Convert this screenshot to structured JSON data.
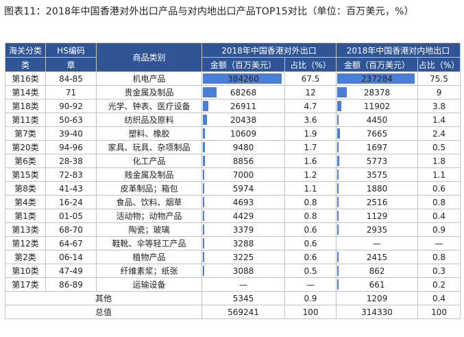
{
  "title": "图表11：2018年中国香港对外出口产品与对内地出口产品TOP15对比（单位：百万美元，%）",
  "headers": {
    "customs_class": "海关分类",
    "customs_class_2": "类",
    "hs_code": "HS编码",
    "hs_code_2": "章",
    "category": "商品类别",
    "group_external": "2018年中国香港对外出口",
    "group_mainland": "2018年中国香港对内地出口",
    "amount": "金额（百万美元）",
    "share": "占比（%）"
  },
  "max_external": 384260,
  "max_mainland": 237284,
  "rows": [
    {
      "cls": "第16类",
      "hs": "84-85",
      "cat": "机电产品",
      "ext": "384260",
      "ext_v": 384260,
      "ext_s": "67.5",
      "ml": "237284",
      "ml_v": 237284,
      "ml_s": "75.5"
    },
    {
      "cls": "第14类",
      "hs": "71",
      "cat": "贵金属及制品",
      "ext": "68268",
      "ext_v": 68268,
      "ext_s": "12",
      "ml": "28378",
      "ml_v": 28378,
      "ml_s": "9"
    },
    {
      "cls": "第18类",
      "hs": "90-92",
      "cat": "光学、钟表、医疗设备",
      "ext": "26911",
      "ext_v": 26911,
      "ext_s": "4.7",
      "ml": "11902",
      "ml_v": 11902,
      "ml_s": "3.8"
    },
    {
      "cls": "第11类",
      "hs": "50-63",
      "cat": "纺织品及原料",
      "ext": "20438",
      "ext_v": 20438,
      "ext_s": "3.6",
      "ml": "4450",
      "ml_v": 4450,
      "ml_s": "1.4"
    },
    {
      "cls": "第7类",
      "hs": "39-40",
      "cat": "塑料、橡胶",
      "ext": "10609",
      "ext_v": 10609,
      "ext_s": "1.9",
      "ml": "7665",
      "ml_v": 7665,
      "ml_s": "2.4"
    },
    {
      "cls": "第20类",
      "hs": "94-96",
      "cat": "家具、玩具、杂项制品",
      "ext": "9480",
      "ext_v": 9480,
      "ext_s": "1.7",
      "ml": "1697",
      "ml_v": 1697,
      "ml_s": "0.5"
    },
    {
      "cls": "第6类",
      "hs": "28-38",
      "cat": "化工产品",
      "ext": "8856",
      "ext_v": 8856,
      "ext_s": "1.6",
      "ml": "5773",
      "ml_v": 5773,
      "ml_s": "1.8"
    },
    {
      "cls": "第15类",
      "hs": "72-83",
      "cat": "贱金属及制品",
      "ext": "7000",
      "ext_v": 7000,
      "ext_s": "1.2",
      "ml": "3575",
      "ml_v": 3575,
      "ml_s": "1.1"
    },
    {
      "cls": "第8类",
      "hs": "41-43",
      "cat": "皮革制品；箱包",
      "ext": "5974",
      "ext_v": 5974,
      "ext_s": "1.1",
      "ml": "1880",
      "ml_v": 1880,
      "ml_s": "0.6"
    },
    {
      "cls": "第4类",
      "hs": "16-24",
      "cat": "食品、饮料、烟草",
      "ext": "4693",
      "ext_v": 4693,
      "ext_s": "0.8",
      "ml": "2516",
      "ml_v": 2516,
      "ml_s": "0.8"
    },
    {
      "cls": "第1类",
      "hs": "01-05",
      "cat": "活动物；动物产品",
      "ext": "4429",
      "ext_v": 4429,
      "ext_s": "0.8",
      "ml": "1129",
      "ml_v": 1129,
      "ml_s": "0.4"
    },
    {
      "cls": "第13类",
      "hs": "68-70",
      "cat": "陶瓷；玻璃",
      "ext": "3379",
      "ext_v": 3379,
      "ext_s": "0.6",
      "ml": "2935",
      "ml_v": 2935,
      "ml_s": "0.9"
    },
    {
      "cls": "第12类",
      "hs": "64-67",
      "cat": "鞋靴、伞等轻工产品",
      "ext": "3288",
      "ext_v": 3288,
      "ext_s": "0.6",
      "ml": "—",
      "ml_v": 0,
      "ml_s": "—"
    },
    {
      "cls": "第2类",
      "hs": "06-14",
      "cat": "植物产品",
      "ext": "3225",
      "ext_v": 3225,
      "ext_s": "0.6",
      "ml": "2415",
      "ml_v": 2415,
      "ml_s": "0.8"
    },
    {
      "cls": "第10类",
      "hs": "47-49",
      "cat": "纤维素浆；纸张",
      "ext": "3088",
      "ext_v": 3088,
      "ext_s": "0.5",
      "ml": "862",
      "ml_v": 862,
      "ml_s": "0.3"
    },
    {
      "cls": "第17类",
      "hs": "86-89",
      "cat": "运输设备",
      "ext": "—",
      "ext_v": 0,
      "ext_s": "—",
      "ml": "661",
      "ml_v": 661,
      "ml_s": "0.2"
    }
  ],
  "footer": [
    {
      "label": "其他",
      "ext": "5345",
      "ext_s": "0.9",
      "ml": "1209",
      "ml_s": "0.4"
    },
    {
      "label": "总值",
      "ext": "569241",
      "ext_s": "100",
      "ml": "314330",
      "ml_s": "100"
    }
  ]
}
